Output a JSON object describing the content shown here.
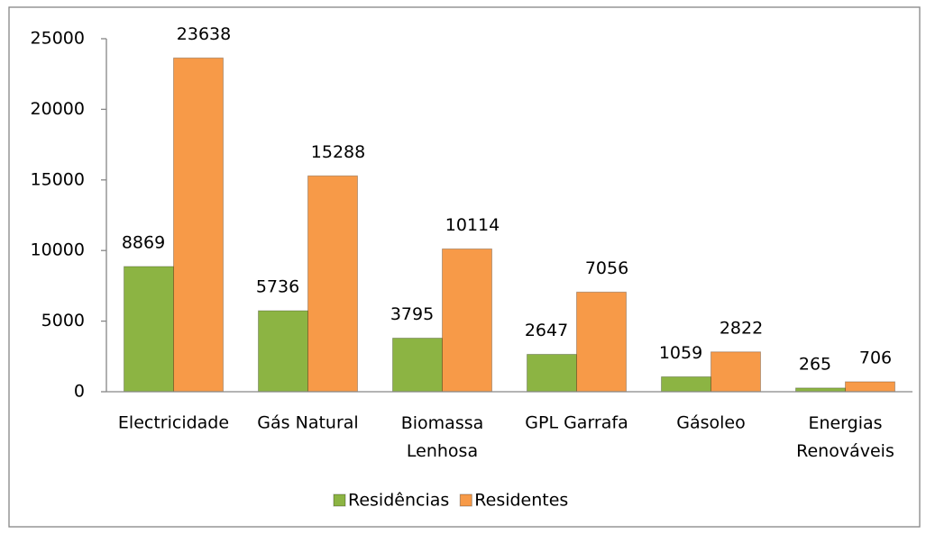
{
  "chart_data": {
    "type": "bar",
    "categories": [
      "Electricidade",
      "Gás Natural",
      "Biomassa Lenhosa",
      "GPL Garrafa",
      "Gásoleo",
      "Energias Renováveis"
    ],
    "series": [
      {
        "name": "Residências",
        "color": "#8cb443",
        "values": [
          8869,
          5736,
          3795,
          2647,
          1059,
          265
        ]
      },
      {
        "name": "Residentes",
        "color": "#f79a48",
        "values": [
          23638,
          15288,
          10114,
          7056,
          2822,
          706
        ]
      }
    ],
    "ylim": [
      0,
      25000
    ],
    "yticks": [
      0,
      5000,
      10000,
      15000,
      20000,
      25000
    ],
    "grid": false,
    "legend": "bottom"
  }
}
